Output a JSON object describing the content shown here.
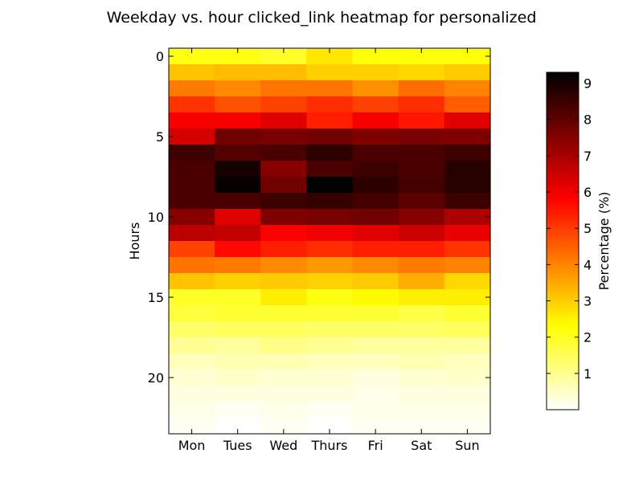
{
  "chart_data": {
    "type": "heatmap",
    "title": "Weekday vs. hour clicked_link heatmap for personalized",
    "xlabel": "",
    "ylabel": "Hours",
    "colorbar_label": "Percentage (%)",
    "colormap": "hot_r",
    "colorbar_range": [
      0,
      9.3
    ],
    "colorbar_ticks": [
      "1",
      "2",
      "3",
      "4",
      "5",
      "6",
      "7",
      "8",
      "9"
    ],
    "x_categories": [
      "Mon",
      "Tues",
      "Wed",
      "Thurs",
      "Fri",
      "Sat",
      "Sun"
    ],
    "y_ticks": [
      "0",
      "5",
      "10",
      "15",
      "20"
    ],
    "y_range": [
      0,
      23
    ],
    "values": [
      [
        2.2,
        2.2,
        2.0,
        2.7,
        2.3,
        2.3,
        2.3
      ],
      [
        3.2,
        3.3,
        3.3,
        3.0,
        3.0,
        2.9,
        3.1
      ],
      [
        4.2,
        4.0,
        4.3,
        4.3,
        3.9,
        4.4,
        4.1
      ],
      [
        5.2,
        4.8,
        5.0,
        5.3,
        5.0,
        5.3,
        4.6
      ],
      [
        6.0,
        6.0,
        6.3,
        5.5,
        6.0,
        5.6,
        6.3
      ],
      [
        6.5,
        7.8,
        7.7,
        7.8,
        7.6,
        7.7,
        7.6
      ],
      [
        8.5,
        8.2,
        8.3,
        8.7,
        8.3,
        8.3,
        8.5
      ],
      [
        8.3,
        9.0,
        7.5,
        8.3,
        8.5,
        8.3,
        8.8
      ],
      [
        8.3,
        9.2,
        7.8,
        9.3,
        8.7,
        8.4,
        8.8
      ],
      [
        8.3,
        8.3,
        8.5,
        8.6,
        8.4,
        8.1,
        8.5
      ],
      [
        7.5,
        6.3,
        7.6,
        7.7,
        7.8,
        7.5,
        7.0
      ],
      [
        6.8,
        6.7,
        5.9,
        6.1,
        6.3,
        6.6,
        6.2
      ],
      [
        5.0,
        5.8,
        5.5,
        5.3,
        5.5,
        5.5,
        5.2
      ],
      [
        4.3,
        4.2,
        4.0,
        3.8,
        4.0,
        4.2,
        4.1
      ],
      [
        3.2,
        3.0,
        3.1,
        3.0,
        3.1,
        3.5,
        2.9
      ],
      [
        2.0,
        2.0,
        2.6,
        2.2,
        2.4,
        2.6,
        2.6
      ],
      [
        1.8,
        1.9,
        1.9,
        1.9,
        1.9,
        1.7,
        1.9
      ],
      [
        1.4,
        1.5,
        1.5,
        1.4,
        1.4,
        1.4,
        1.5
      ],
      [
        1.0,
        0.9,
        1.1,
        1.0,
        0.9,
        0.9,
        0.9
      ],
      [
        0.6,
        0.7,
        0.7,
        0.6,
        0.6,
        0.7,
        0.6
      ],
      [
        0.4,
        0.5,
        0.4,
        0.4,
        0.3,
        0.4,
        0.5
      ],
      [
        0.3,
        0.3,
        0.3,
        0.3,
        0.2,
        0.3,
        0.3
      ],
      [
        0.2,
        0.1,
        0.2,
        0.1,
        0.2,
        0.2,
        0.2
      ],
      [
        0.1,
        0.0,
        0.1,
        0.0,
        0.1,
        0.1,
        0.1
      ]
    ]
  }
}
